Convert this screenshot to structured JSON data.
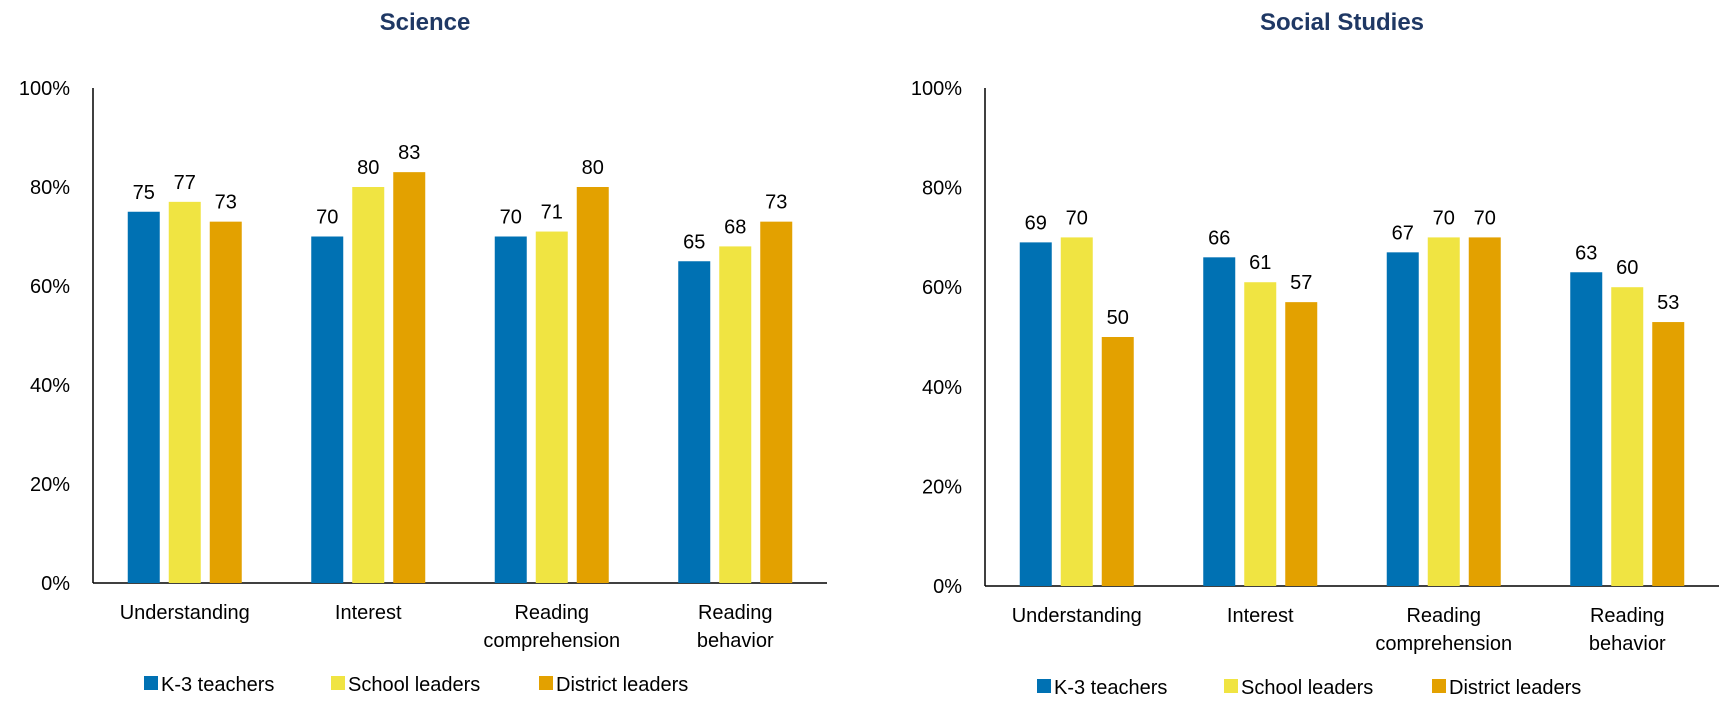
{
  "chart_data": [
    {
      "type": "bar",
      "title": "Science",
      "categories": [
        [
          "Understanding"
        ],
        [
          "Interest"
        ],
        [
          "Reading",
          "comprehension"
        ],
        [
          "Reading",
          "behavior"
        ]
      ],
      "ylim": [
        0,
        100
      ],
      "yticks": [
        "0%",
        "20%",
        "40%",
        "60%",
        "80%",
        "100%"
      ],
      "ytick_values": [
        0,
        20,
        40,
        60,
        80,
        100
      ],
      "grid": false,
      "legend_position": "bottom",
      "series": [
        {
          "name": "K-3 teachers",
          "color": "#0071b3",
          "values": [
            75,
            70,
            70,
            65
          ]
        },
        {
          "name": "School leaders",
          "color": "#f0e442",
          "values": [
            77,
            80,
            71,
            68
          ]
        },
        {
          "name": "District leaders",
          "color": "#e3a100",
          "values": [
            73,
            83,
            80,
            73
          ]
        }
      ]
    },
    {
      "type": "bar",
      "title": "Social Studies",
      "categories": [
        [
          "Understanding"
        ],
        [
          "Interest"
        ],
        [
          "Reading",
          "comprehension"
        ],
        [
          "Reading",
          "behavior"
        ]
      ],
      "ylim": [
        0,
        100
      ],
      "yticks": [
        "0%",
        "20%",
        "40%",
        "60%",
        "80%",
        "100%"
      ],
      "ytick_values": [
        0,
        20,
        40,
        60,
        80,
        100
      ],
      "grid": false,
      "legend_position": "bottom",
      "series": [
        {
          "name": "K-3 teachers",
          "color": "#0071b3",
          "values": [
            69,
            66,
            67,
            63
          ]
        },
        {
          "name": "School leaders",
          "color": "#f0e442",
          "values": [
            70,
            61,
            70,
            60
          ]
        },
        {
          "name": "District leaders",
          "color": "#e3a100",
          "values": [
            50,
            57,
            70,
            53
          ]
        }
      ]
    }
  ]
}
